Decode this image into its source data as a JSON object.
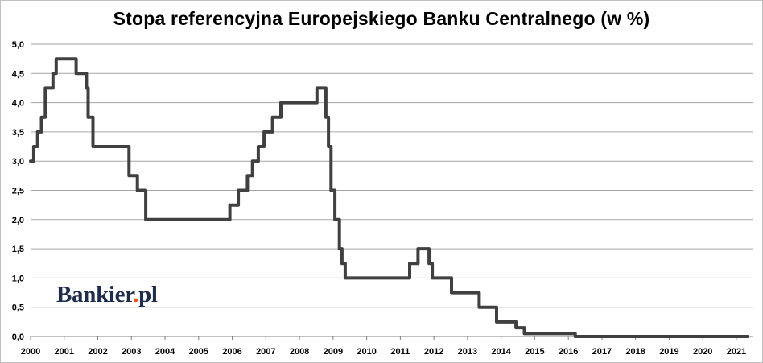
{
  "chart_data": {
    "type": "line",
    "title": "Stopa referencyjna  Europejskiego Banku Centralnego (w %)",
    "xlabel": "",
    "ylabel": "",
    "ylim": [
      0,
      5
    ],
    "xlim": [
      2000,
      2021.4
    ],
    "y_ticks": [
      "0,0",
      "0,5",
      "1,0",
      "1,5",
      "2,0",
      "2,5",
      "3,0",
      "3,5",
      "4,0",
      "4,5",
      "5,0"
    ],
    "x_ticks": [
      "2000",
      "2001",
      "2002",
      "2003",
      "2004",
      "2005",
      "2006",
      "2007",
      "2008",
      "2009",
      "2010",
      "2011",
      "2012",
      "2013",
      "2014",
      "2015",
      "2016",
      "2017",
      "2018",
      "2019",
      "2020",
      "2021"
    ],
    "grid": "horizontal",
    "line_color": "#404040",
    "series": [
      {
        "x": [
          "2000-01-01",
          "2000-02-04",
          "2000-03-17",
          "2000-04-28",
          "2000-06-09",
          "2000-09-01",
          "2000-10-06",
          "2001-05-11",
          "2001-08-31",
          "2001-09-18",
          "2001-11-09",
          "2002-12-06",
          "2003-03-07",
          "2003-06-06",
          "2005-12-06",
          "2006-03-08",
          "2006-06-15",
          "2006-08-09",
          "2006-10-11",
          "2006-12-13",
          "2007-03-14",
          "2007-06-13",
          "2008-07-09",
          "2008-10-15",
          "2008-11-12",
          "2008-12-10",
          "2009-01-21",
          "2009-03-11",
          "2009-04-08",
          "2009-05-13",
          "2011-04-13",
          "2011-07-13",
          "2011-11-09",
          "2011-12-14",
          "2012-07-11",
          "2013-05-08",
          "2013-11-13",
          "2014-06-11",
          "2014-09-10",
          "2016-03-16",
          "2021-05-01"
        ],
        "values": [
          3.0,
          3.25,
          3.5,
          3.75,
          4.25,
          4.5,
          4.75,
          4.5,
          4.25,
          3.75,
          3.25,
          2.75,
          2.5,
          2.0,
          2.25,
          2.5,
          2.75,
          3.0,
          3.25,
          3.5,
          3.75,
          4.0,
          4.25,
          3.75,
          3.25,
          2.5,
          2.0,
          1.5,
          1.25,
          1.0,
          1.25,
          1.5,
          1.25,
          1.0,
          0.75,
          0.5,
          0.25,
          0.15,
          0.05,
          0.0,
          0.0
        ]
      }
    ]
  },
  "logo": {
    "text": "Bankier",
    "dot": ".",
    "suffix": "pl"
  }
}
